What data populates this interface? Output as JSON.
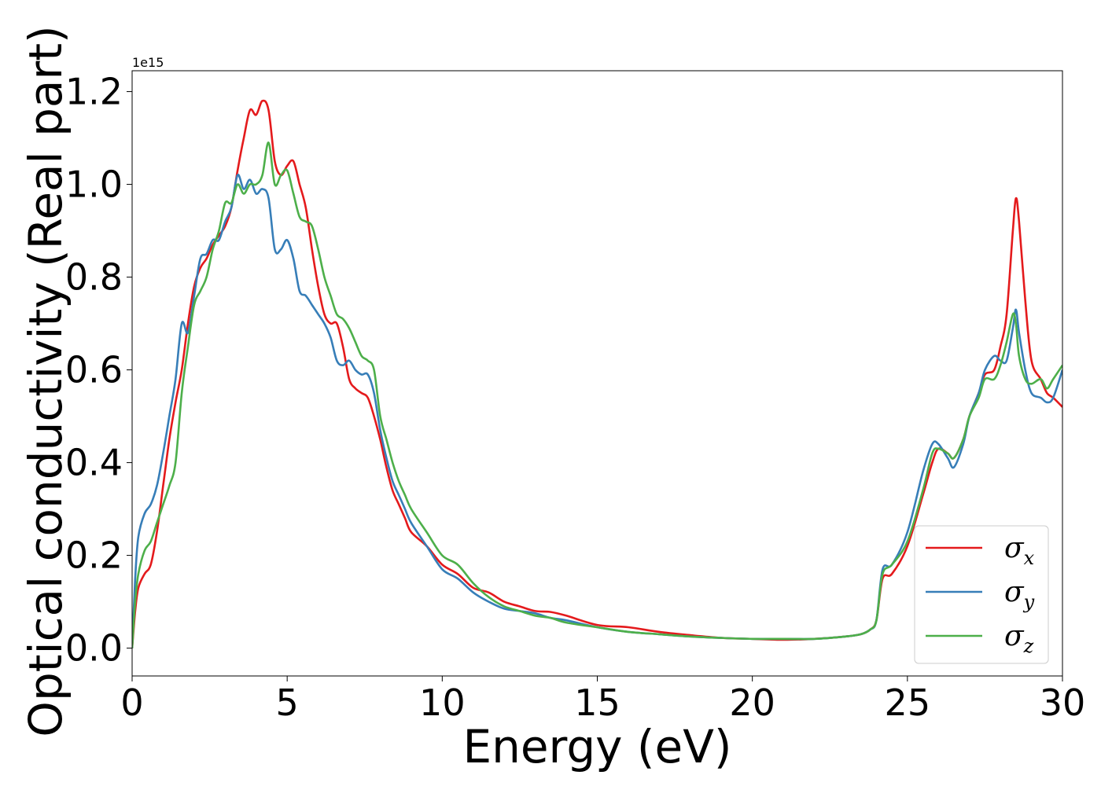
{
  "chart_data": {
    "type": "line",
    "xlabel": "Energy (eV)",
    "ylabel": "Optical conductivity (Real part)",
    "y_offset_text": "1e15",
    "xlim": [
      0,
      30
    ],
    "ylim": [
      -0.06,
      1.245
    ],
    "y_scale_factor": 1000000000000000.0,
    "x_ticks": [
      0,
      5,
      10,
      15,
      20,
      25,
      30
    ],
    "x_tick_labels": [
      "0",
      "5",
      "10",
      "15",
      "20",
      "25",
      "30"
    ],
    "y_ticks": [
      0.0,
      0.2,
      0.4,
      0.6,
      0.8,
      1.0,
      1.2
    ],
    "y_tick_labels": [
      "0.0",
      "0.2",
      "0.4",
      "0.6",
      "0.8",
      "1.0",
      "1.2"
    ],
    "grid": false,
    "legend_position": "lower-right",
    "series": [
      {
        "name": "σx",
        "symbol": "σ",
        "subscript": "x",
        "color": "#e41a1c",
        "x": [
          0,
          0.1,
          0.2,
          0.4,
          0.6,
          0.8,
          1.0,
          1.2,
          1.4,
          1.6,
          1.8,
          2.0,
          2.2,
          2.4,
          2.6,
          2.8,
          3.0,
          3.2,
          3.4,
          3.6,
          3.8,
          4.0,
          4.2,
          4.4,
          4.6,
          4.8,
          5.0,
          5.2,
          5.4,
          5.6,
          5.8,
          6.0,
          6.2,
          6.4,
          6.6,
          6.8,
          7.0,
          7.2,
          7.4,
          7.6,
          7.8,
          8.0,
          8.2,
          8.4,
          8.6,
          8.8,
          9.0,
          9.5,
          10.0,
          10.5,
          11.0,
          11.5,
          12.0,
          12.5,
          13.0,
          13.5,
          14.0,
          15.0,
          16.0,
          17.0,
          18.0,
          19.0,
          20.0,
          21.0,
          22.0,
          23.0,
          23.5,
          23.8,
          24.0,
          24.2,
          24.5,
          25.0,
          25.5,
          25.8,
          26.0,
          26.3,
          26.5,
          26.8,
          27.0,
          27.3,
          27.5,
          27.8,
          28.0,
          28.2,
          28.4,
          28.5,
          28.6,
          28.8,
          29.0,
          29.3,
          29.5,
          29.7,
          30.0
        ],
        "y": [
          0.0,
          0.08,
          0.13,
          0.16,
          0.18,
          0.25,
          0.35,
          0.45,
          0.53,
          0.6,
          0.7,
          0.78,
          0.82,
          0.84,
          0.87,
          0.89,
          0.91,
          0.95,
          1.03,
          1.1,
          1.16,
          1.15,
          1.18,
          1.16,
          1.05,
          1.02,
          1.04,
          1.05,
          1.0,
          0.95,
          0.86,
          0.78,
          0.72,
          0.7,
          0.7,
          0.65,
          0.58,
          0.56,
          0.55,
          0.54,
          0.5,
          0.45,
          0.39,
          0.34,
          0.31,
          0.28,
          0.25,
          0.22,
          0.18,
          0.16,
          0.13,
          0.12,
          0.1,
          0.09,
          0.08,
          0.078,
          0.07,
          0.05,
          0.045,
          0.035,
          0.028,
          0.022,
          0.02,
          0.018,
          0.02,
          0.025,
          0.03,
          0.04,
          0.06,
          0.15,
          0.16,
          0.22,
          0.33,
          0.4,
          0.43,
          0.42,
          0.41,
          0.45,
          0.5,
          0.55,
          0.59,
          0.6,
          0.65,
          0.72,
          0.9,
          0.97,
          0.92,
          0.75,
          0.62,
          0.58,
          0.55,
          0.54,
          0.52
        ]
      },
      {
        "name": "σy",
        "symbol": "σ",
        "subscript": "y",
        "color": "#377eb8",
        "x": [
          0,
          0.1,
          0.2,
          0.4,
          0.6,
          0.8,
          1.0,
          1.2,
          1.4,
          1.6,
          1.8,
          2.0,
          2.2,
          2.4,
          2.6,
          2.8,
          3.0,
          3.2,
          3.4,
          3.6,
          3.8,
          4.0,
          4.2,
          4.4,
          4.6,
          4.8,
          5.0,
          5.2,
          5.4,
          5.6,
          5.8,
          6.0,
          6.2,
          6.4,
          6.6,
          6.8,
          7.0,
          7.2,
          7.4,
          7.6,
          7.8,
          8.0,
          8.2,
          8.4,
          8.6,
          8.8,
          9.0,
          9.5,
          10.0,
          10.5,
          11.0,
          11.5,
          12.0,
          12.5,
          13.0,
          13.5,
          14.0,
          15.0,
          16.0,
          17.0,
          18.0,
          19.0,
          20.0,
          21.0,
          22.0,
          23.0,
          23.5,
          23.8,
          24.0,
          24.2,
          24.5,
          25.0,
          25.5,
          25.8,
          26.0,
          26.3,
          26.5,
          26.8,
          27.0,
          27.3,
          27.5,
          27.8,
          28.0,
          28.2,
          28.4,
          28.5,
          28.6,
          28.8,
          29.0,
          29.3,
          29.5,
          29.7,
          30.0
        ],
        "y": [
          0.0,
          0.15,
          0.24,
          0.29,
          0.31,
          0.35,
          0.42,
          0.5,
          0.58,
          0.7,
          0.68,
          0.76,
          0.84,
          0.85,
          0.88,
          0.88,
          0.92,
          0.95,
          1.02,
          0.99,
          1.01,
          0.98,
          0.99,
          0.97,
          0.86,
          0.86,
          0.88,
          0.84,
          0.77,
          0.76,
          0.74,
          0.72,
          0.7,
          0.67,
          0.62,
          0.61,
          0.62,
          0.6,
          0.59,
          0.59,
          0.55,
          0.47,
          0.41,
          0.36,
          0.33,
          0.3,
          0.27,
          0.22,
          0.17,
          0.15,
          0.12,
          0.1,
          0.085,
          0.08,
          0.075,
          0.065,
          0.06,
          0.045,
          0.035,
          0.03,
          0.025,
          0.022,
          0.02,
          0.02,
          0.02,
          0.025,
          0.03,
          0.04,
          0.06,
          0.17,
          0.18,
          0.25,
          0.38,
          0.44,
          0.44,
          0.41,
          0.39,
          0.44,
          0.5,
          0.55,
          0.6,
          0.63,
          0.62,
          0.62,
          0.69,
          0.73,
          0.68,
          0.6,
          0.55,
          0.54,
          0.53,
          0.54,
          0.6
        ]
      },
      {
        "name": "σz",
        "symbol": "σ",
        "subscript": "z",
        "color": "#4daf4a",
        "x": [
          0,
          0.1,
          0.2,
          0.4,
          0.6,
          0.8,
          1.0,
          1.2,
          1.4,
          1.6,
          1.8,
          2.0,
          2.2,
          2.4,
          2.6,
          2.8,
          3.0,
          3.2,
          3.4,
          3.6,
          3.8,
          4.0,
          4.2,
          4.4,
          4.6,
          4.8,
          5.0,
          5.2,
          5.4,
          5.6,
          5.8,
          6.0,
          6.2,
          6.4,
          6.6,
          6.8,
          7.0,
          7.2,
          7.4,
          7.6,
          7.8,
          8.0,
          8.2,
          8.4,
          8.6,
          8.8,
          9.0,
          9.5,
          10.0,
          10.5,
          11.0,
          11.5,
          12.0,
          12.5,
          13.0,
          13.5,
          14.0,
          15.0,
          16.0,
          17.0,
          18.0,
          19.0,
          20.0,
          21.0,
          22.0,
          23.0,
          23.5,
          23.8,
          24.0,
          24.2,
          24.5,
          25.0,
          25.5,
          25.8,
          26.0,
          26.3,
          26.5,
          26.8,
          27.0,
          27.3,
          27.5,
          27.8,
          28.0,
          28.2,
          28.4,
          28.5,
          28.6,
          28.8,
          29.0,
          29.3,
          29.5,
          29.7,
          30.0
        ],
        "y": [
          0.0,
          0.1,
          0.16,
          0.21,
          0.23,
          0.27,
          0.31,
          0.35,
          0.4,
          0.55,
          0.65,
          0.74,
          0.77,
          0.8,
          0.86,
          0.9,
          0.96,
          0.96,
          1.0,
          0.98,
          1.0,
          1.0,
          1.02,
          1.09,
          1.0,
          1.02,
          1.03,
          0.98,
          0.93,
          0.92,
          0.91,
          0.86,
          0.8,
          0.76,
          0.72,
          0.71,
          0.69,
          0.66,
          0.63,
          0.62,
          0.6,
          0.5,
          0.45,
          0.4,
          0.36,
          0.33,
          0.3,
          0.25,
          0.2,
          0.18,
          0.14,
          0.11,
          0.09,
          0.08,
          0.07,
          0.065,
          0.055,
          0.045,
          0.035,
          0.03,
          0.025,
          0.022,
          0.02,
          0.02,
          0.02,
          0.025,
          0.03,
          0.04,
          0.06,
          0.16,
          0.18,
          0.23,
          0.34,
          0.42,
          0.43,
          0.42,
          0.41,
          0.45,
          0.5,
          0.54,
          0.58,
          0.58,
          0.61,
          0.66,
          0.72,
          0.7,
          0.63,
          0.58,
          0.57,
          0.58,
          0.56,
          0.58,
          0.61
        ]
      }
    ]
  }
}
